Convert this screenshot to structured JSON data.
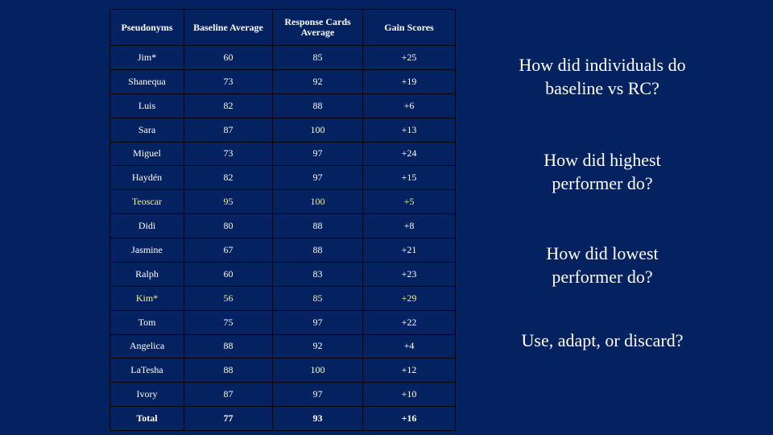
{
  "table": {
    "headers": [
      "Pseudonyms",
      "Baseline Average",
      "Response Cards Average",
      "Gain Scores"
    ],
    "rows": [
      {
        "name": "Jim*",
        "baseline": "60",
        "rc": "85",
        "gain": "+25",
        "highlight": false
      },
      {
        "name": "Shanequa",
        "baseline": "73",
        "rc": "92",
        "gain": "+19",
        "highlight": false
      },
      {
        "name": "Luis",
        "baseline": "82",
        "rc": "88",
        "gain": "+6",
        "highlight": false
      },
      {
        "name": "Sara",
        "baseline": "87",
        "rc": "100",
        "gain": "+13",
        "highlight": false
      },
      {
        "name": "Miguel",
        "baseline": "73",
        "rc": "97",
        "gain": "+24",
        "highlight": false
      },
      {
        "name": "Haydén",
        "baseline": "82",
        "rc": "97",
        "gain": "+15",
        "highlight": false
      },
      {
        "name": "Teoscar",
        "baseline": "95",
        "rc": "100",
        "gain": "+5",
        "highlight": true
      },
      {
        "name": "Didi",
        "baseline": "80",
        "rc": "88",
        "gain": "+8",
        "highlight": false
      },
      {
        "name": "Jasmine",
        "baseline": "67",
        "rc": "88",
        "gain": "+21",
        "highlight": false
      },
      {
        "name": "Ralph",
        "baseline": "60",
        "rc": "83",
        "gain": "+23",
        "highlight": false
      },
      {
        "name": "Kim*",
        "baseline": "56",
        "rc": "85",
        "gain": "+29",
        "highlight": true
      },
      {
        "name": "Tom",
        "baseline": "75",
        "rc": "97",
        "gain": "+22",
        "highlight": false
      },
      {
        "name": "Angelica",
        "baseline": "88",
        "rc": "92",
        "gain": "+4",
        "highlight": false
      },
      {
        "name": "LaTesha",
        "baseline": "88",
        "rc": "100",
        "gain": "+12",
        "highlight": false
      },
      {
        "name": "Ivory",
        "baseline": "87",
        "rc": "97",
        "gain": "+10",
        "highlight": false
      }
    ],
    "total": {
      "name": "Total",
      "baseline": "77",
      "rc": "93",
      "gain": "+16"
    }
  },
  "questions": {
    "q1": "How did individuals do\nbaseline vs RC?",
    "q2": "How did highest\nperformer do?",
    "q3": "How did lowest\nperformer do?",
    "q4": "Use, adapt, or discard?"
  },
  "colors": {
    "background": "#042260",
    "text": "#ffffff",
    "highlight_text": "#f2f28a",
    "grid": "#000000"
  }
}
